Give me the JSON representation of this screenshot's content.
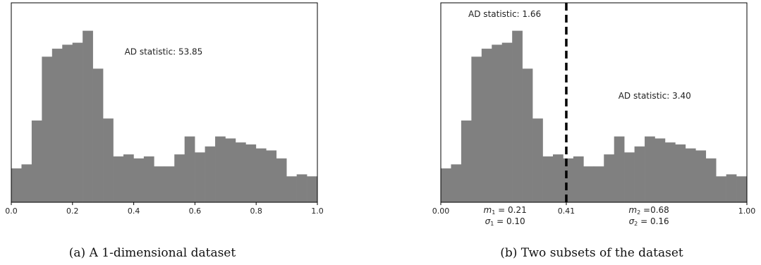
{
  "bar_color": "#808080",
  "split_line_color": "#000000",
  "chart_data": [
    {
      "type": "bar",
      "caption": "(a) A 1-dimensional dataset",
      "xlim": [
        0,
        1
      ],
      "ylim": [
        0,
        1
      ],
      "x_ticks": [
        0.0,
        0.2,
        0.4,
        0.6,
        0.8,
        1.0
      ],
      "x_tick_labels": [
        "0.0",
        "0.2",
        "0.4",
        "0.6",
        "0.8",
        "1.0"
      ],
      "bin_edges_start": 0,
      "bin_width": 0.0333,
      "values": [
        0.17,
        0.19,
        0.41,
        0.73,
        0.77,
        0.79,
        0.8,
        0.86,
        0.67,
        0.42,
        0.23,
        0.24,
        0.22,
        0.23,
        0.18,
        0.18,
        0.24,
        0.33,
        0.25,
        0.28,
        0.33,
        0.32,
        0.3,
        0.29,
        0.27,
        0.26,
        0.22,
        0.13,
        0.14,
        0.13
      ],
      "annotations": [
        {
          "text": "AD statistic: 53.85",
          "x": 0.37,
          "y": 0.74
        }
      ]
    },
    {
      "type": "bar",
      "caption": "(b) Two subsets of the dataset",
      "xlim": [
        0,
        1
      ],
      "ylim": [
        0,
        1
      ],
      "x_ticks": [
        0.0,
        0.41,
        1.0
      ],
      "x_tick_labels": [
        "0.00",
        "0.41",
        "1.00"
      ],
      "bin_edges_start": 0,
      "bin_width": 0.0333,
      "values": [
        0.17,
        0.19,
        0.41,
        0.73,
        0.77,
        0.79,
        0.8,
        0.86,
        0.67,
        0.42,
        0.23,
        0.24,
        0.22,
        0.23,
        0.18,
        0.18,
        0.24,
        0.33,
        0.25,
        0.28,
        0.33,
        0.32,
        0.3,
        0.29,
        0.27,
        0.26,
        0.22,
        0.13,
        0.14,
        0.13
      ],
      "split_x": 0.41,
      "annotations": [
        {
          "text": "AD statistic: 1.66",
          "x": 0.09,
          "y": 0.93
        },
        {
          "text": "AD statistic: 3.40",
          "x": 0.58,
          "y": 0.52
        }
      ],
      "subset_stats": [
        {
          "x": 0.21,
          "mean_label": "m",
          "mean_sub": "1",
          "mean_value": "= 0.21",
          "sd_label": "σ",
          "sd_sub": "1",
          "sd_value": "= 0.10"
        },
        {
          "x": 0.68,
          "mean_label": "m",
          "mean_sub": "2",
          "mean_value": "=0.68",
          "sd_label": "σ",
          "sd_sub": "2",
          "sd_value": "= 0.16"
        }
      ]
    }
  ]
}
